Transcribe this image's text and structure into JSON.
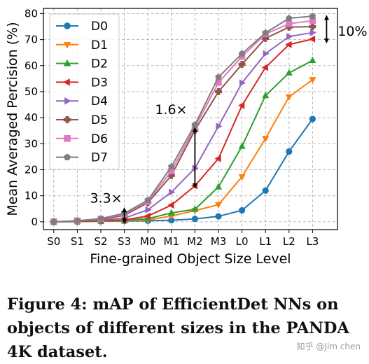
{
  "chart_data": {
    "type": "line",
    "title": "",
    "xlabel": "Fine-grained Object Size Level",
    "ylabel": "Mean Averaged Percision (%)",
    "categories": [
      "S0",
      "S1",
      "S2",
      "S3",
      "M0",
      "M1",
      "M2",
      "M3",
      "L0",
      "L1",
      "L2",
      "L3"
    ],
    "ylim": [
      -3,
      82
    ],
    "yticks": [
      0,
      10,
      20,
      30,
      40,
      50,
      60,
      70,
      80
    ],
    "grid": true,
    "legend_position": "top-left",
    "series": [
      {
        "name": "D0",
        "color": "#1f77b4",
        "marker": "circle",
        "values": [
          0,
          0.1,
          0.2,
          0.3,
          0.4,
          0.6,
          1.1,
          2.1,
          4.4,
          12,
          27,
          39.5
        ]
      },
      {
        "name": "D1",
        "color": "#ff7f0e",
        "marker": "triangle-down",
        "values": [
          0,
          0.1,
          0.2,
          0.4,
          0.7,
          2.2,
          4.3,
          6.6,
          17.3,
          32,
          48,
          54.6
        ]
      },
      {
        "name": "D2",
        "color": "#2ca02c",
        "marker": "triangle-up",
        "values": [
          0,
          0.1,
          0.3,
          0.5,
          1.2,
          3.4,
          4.8,
          13.4,
          29,
          48.5,
          57.2,
          62
        ]
      },
      {
        "name": "D3",
        "color": "#d62728",
        "marker": "triangle-left",
        "values": [
          0,
          0.2,
          0.4,
          0.7,
          2.2,
          6.4,
          13.8,
          24.3,
          44.7,
          59.3,
          68.1,
          70.2
        ]
      },
      {
        "name": "D4",
        "color": "#9467bd",
        "marker": "triangle-right",
        "values": [
          0,
          0.3,
          0.7,
          1.4,
          4.6,
          11.4,
          20.6,
          36.7,
          53.4,
          64.6,
          71.2,
          72.7
        ]
      },
      {
        "name": "D5",
        "color": "#8c564b",
        "marker": "x-filled",
        "values": [
          0,
          0.3,
          0.9,
          2.5,
          7.3,
          17.8,
          35.2,
          50,
          60.5,
          70.5,
          74.8,
          75
        ]
      },
      {
        "name": "D6",
        "color": "#e377c2",
        "marker": "square",
        "values": [
          0,
          0.4,
          1.1,
          3,
          7.8,
          19.5,
          36.3,
          53.5,
          63.5,
          72.2,
          76.1,
          77.3
        ]
      },
      {
        "name": "D7",
        "color": "#7f7f7f",
        "marker": "pentagon",
        "values": [
          0,
          0.4,
          1.2,
          3.3,
          8.3,
          21.2,
          37.3,
          55.6,
          64.6,
          72.6,
          78.2,
          79
        ]
      }
    ],
    "annotations": [
      {
        "text": "3.3×",
        "category": "S3",
        "y_range": [
          0.3,
          4.6
        ]
      },
      {
        "text": "1.6×",
        "category": "M2",
        "y_range": [
          13.8,
          35.5
        ]
      },
      {
        "text": "10%",
        "category": "L3",
        "y_range": [
          69.5,
          78.5
        ]
      }
    ]
  },
  "caption": "Figure 4: mAP of EfficientDet NNs on objects of different sizes in the PANDA 4K dataset.",
  "watermark": "知乎 @Jim chen"
}
